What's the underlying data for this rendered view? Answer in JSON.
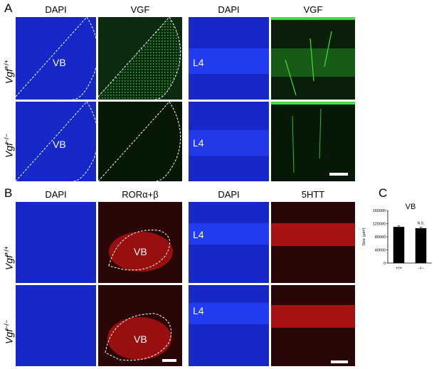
{
  "panels": {
    "A": {
      "letter": "A",
      "col_labels": [
        "DAPI",
        "VGF",
        "DAPI",
        "VGF"
      ]
    },
    "B": {
      "letter": "B",
      "col_labels": [
        "DAPI",
        "RORα+β",
        "DAPI",
        "5HTT"
      ]
    },
    "C": {
      "letter": "C"
    }
  },
  "rows": {
    "wt": {
      "base": "Vgf",
      "sup": "+/+"
    },
    "ko": {
      "base": "Vgf",
      "sup": "−/−"
    }
  },
  "inset_labels": {
    "vb": "VB",
    "l4": "L4"
  },
  "colors": {
    "dapi": "#1a2fd6",
    "green": "#2fbf2f",
    "red": "#e01818",
    "bar": "#000000"
  },
  "chart_data": {
    "type": "bar",
    "title": "VB",
    "categories": [
      "+/+",
      "−/−"
    ],
    "values": [
      110000,
      106000
    ],
    "errors": [
      3000,
      3000
    ],
    "annotation": "N.S.",
    "ylabel": "Size (μm²)",
    "ylim": [
      0,
      160000
    ],
    "yticks": [
      "0",
      "40000",
      "80000",
      "120000",
      "160000"
    ]
  }
}
